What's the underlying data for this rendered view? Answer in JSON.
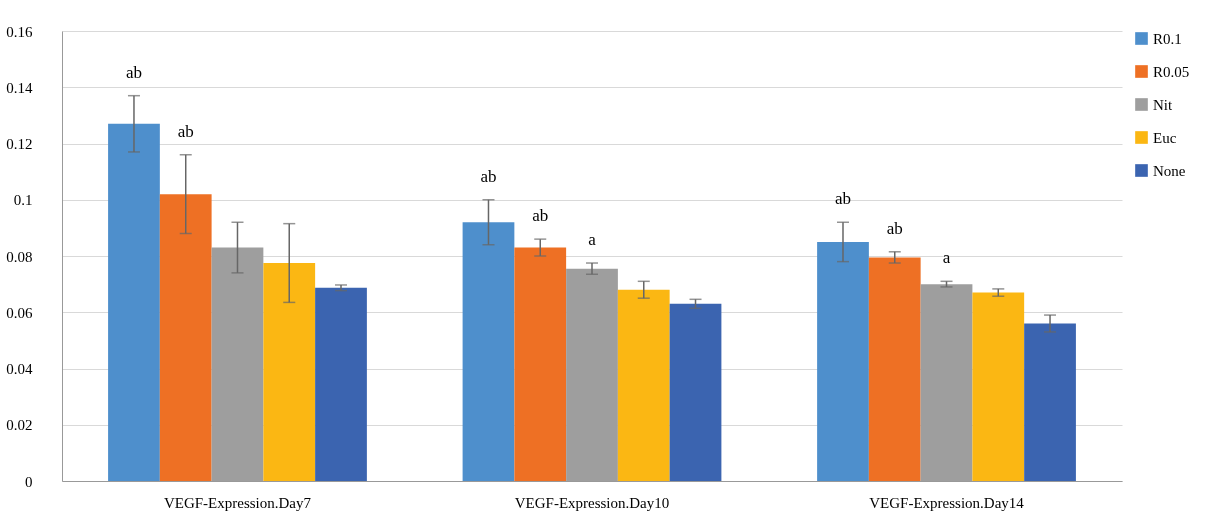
{
  "chart_data": {
    "type": "bar",
    "categories": [
      "VEGF-Expression.Day7",
      "VEGF-Expression.Day10",
      "VEGF-Expression.Day14"
    ],
    "series": [
      {
        "name": "R0.1",
        "color": "#4e8fcc",
        "values": [
          0.127,
          0.092,
          0.085
        ],
        "errors": [
          0.01,
          0.008,
          0.007
        ],
        "value_labels": [
          "ab",
          "ab",
          "ab"
        ]
      },
      {
        "name": "R0.05",
        "color": "#ee7024",
        "values": [
          0.102,
          0.083,
          0.0795
        ],
        "errors": [
          0.014,
          0.003,
          0.002
        ],
        "value_labels": [
          "ab",
          "ab",
          "ab"
        ]
      },
      {
        "name": "Nit",
        "color": "#9e9e9e",
        "values": [
          0.083,
          0.0755,
          0.07
        ],
        "errors": [
          0.009,
          0.002,
          0.001
        ],
        "value_labels": [
          null,
          "a",
          "a"
        ]
      },
      {
        "name": "Euc",
        "color": "#fbb713",
        "values": [
          0.0775,
          0.068,
          0.067
        ],
        "errors": [
          0.014,
          0.003,
          0.0013
        ],
        "value_labels": [
          null,
          null,
          null
        ]
      },
      {
        "name": "None",
        "color": "#3b64b0",
        "values": [
          0.0687,
          0.063,
          0.056
        ],
        "errors": [
          0.001,
          0.0016,
          0.003
        ],
        "value_labels": [
          null,
          null,
          null
        ]
      }
    ],
    "ylim": [
      0,
      0.16
    ],
    "yticks": [
      0,
      0.02,
      0.04,
      0.06,
      0.08,
      0.1,
      0.12,
      0.14,
      0.16
    ],
    "grid": "y",
    "legend": "top right"
  }
}
